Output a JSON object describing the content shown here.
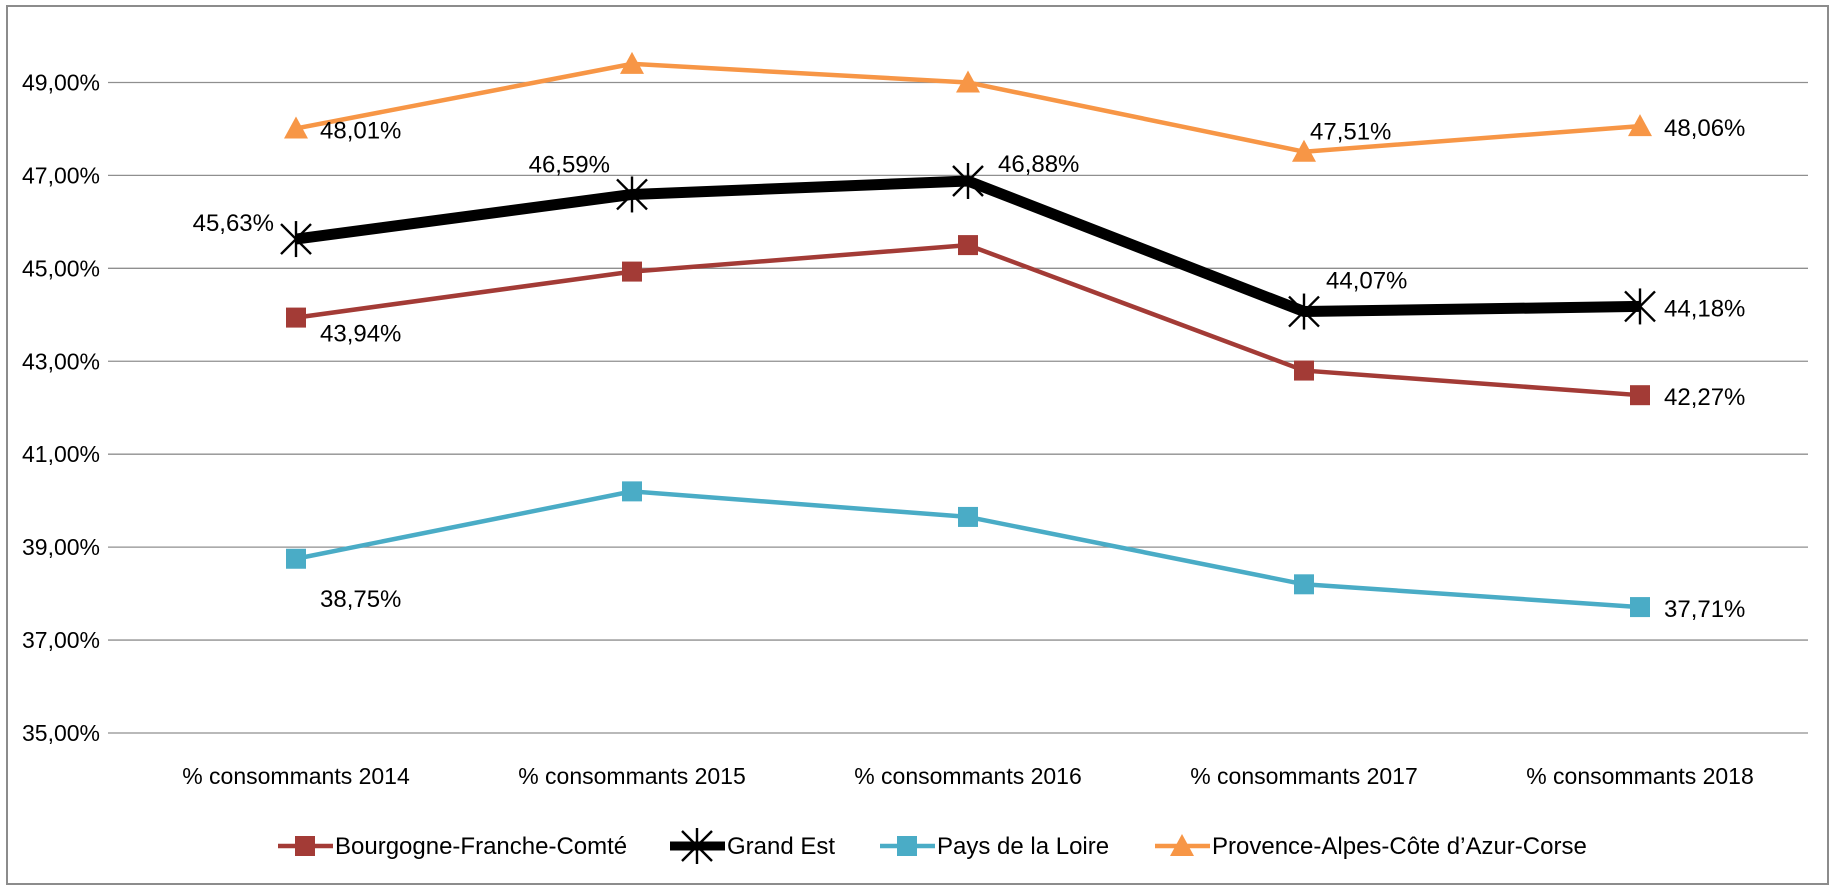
{
  "chart_data": {
    "type": "line",
    "title": "",
    "xlabel": "",
    "ylabel": "",
    "ylim": [
      35,
      50
    ],
    "y_ticks": [
      "35,00%",
      "37,00%",
      "39,00%",
      "41,00%",
      "43,00%",
      "45,00%",
      "47,00%",
      "49,00%"
    ],
    "y_tick_values": [
      35,
      37,
      39,
      41,
      43,
      45,
      47,
      49
    ],
    "grid": "horizontal",
    "legend_position": "bottom",
    "categories": [
      "% consommants 2014",
      "% consommants 2015",
      "% consommants 2016",
      "% consommants 2017",
      "% consommants 2018"
    ],
    "series": [
      {
        "name": "Bourgogne-Franche-Comté",
        "color": "#a33b36",
        "marker": "square",
        "values": [
          43.94,
          44.93,
          45.5,
          42.8,
          42.27
        ],
        "labels": [
          "43,94%",
          null,
          null,
          null,
          "42,27%"
        ]
      },
      {
        "name": "Grand Est",
        "color": "#000000",
        "marker": "star",
        "values": [
          45.63,
          46.59,
          46.88,
          44.07,
          44.18
        ],
        "labels": [
          "45,63%",
          "46,59%",
          "46,88%",
          "44,07%",
          "44,18%"
        ]
      },
      {
        "name": "Pays de la Loire",
        "color": "#4aacc6",
        "marker": "square",
        "values": [
          38.75,
          40.2,
          39.65,
          38.2,
          37.71
        ],
        "labels": [
          "38,75%",
          null,
          null,
          null,
          "37,71%"
        ]
      },
      {
        "name": "Provence-Alpes-Côte d’Azur-Corse",
        "color": "#f79646",
        "marker": "triangle",
        "values": [
          48.01,
          49.4,
          49.0,
          47.51,
          48.06
        ],
        "labels": [
          "48,01%",
          null,
          null,
          "47,51%",
          "48,06%"
        ]
      }
    ]
  }
}
